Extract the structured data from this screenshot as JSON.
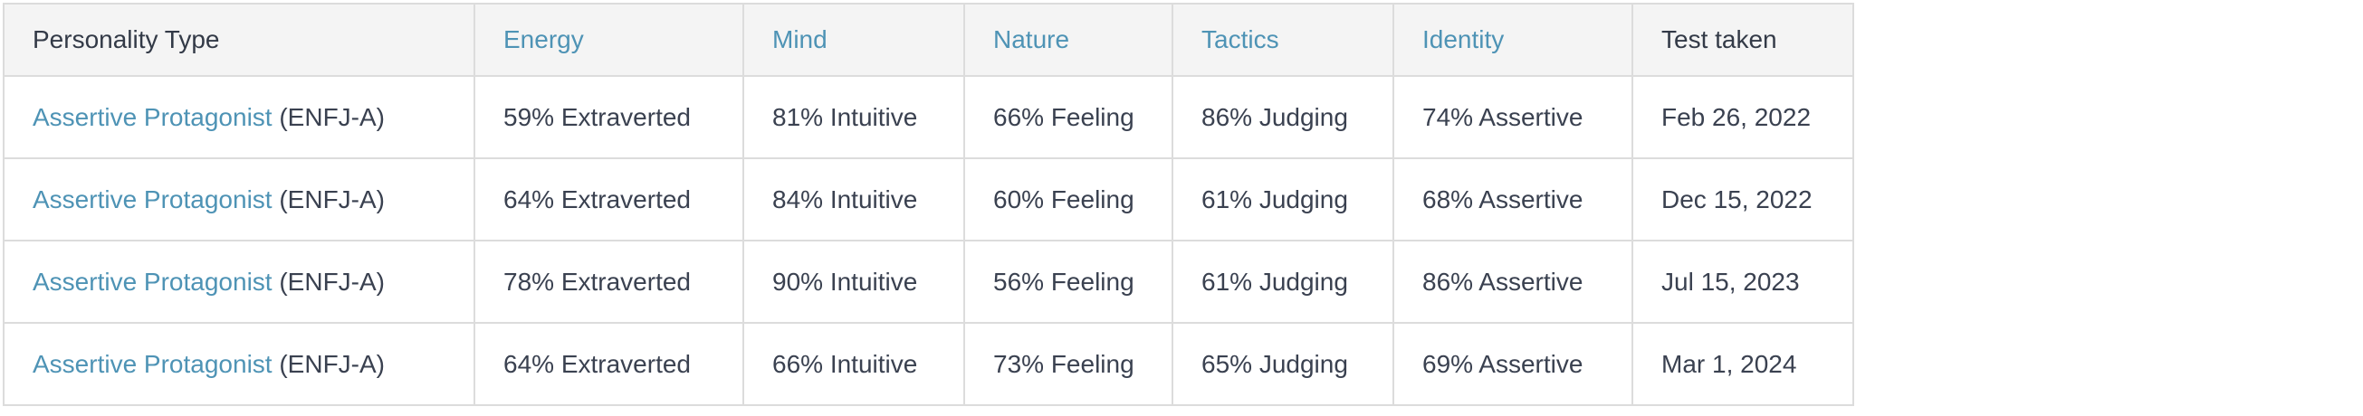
{
  "table": {
    "headers": {
      "type": "Personality Type",
      "energy": "Energy",
      "mind": "Mind",
      "nature": "Nature",
      "tactics": "Tactics",
      "identity": "Identity",
      "date": "Test taken"
    },
    "rows": [
      {
        "type_name": "Assertive Protagonist",
        "type_code": "(ENFJ-A)",
        "energy": "59% Extraverted",
        "mind": "81% Intuitive",
        "nature": "66% Feeling",
        "tactics": "86% Judging",
        "identity": "74% Assertive",
        "date": "Feb 26, 2022"
      },
      {
        "type_name": "Assertive Protagonist",
        "type_code": "(ENFJ-A)",
        "energy": "64% Extraverted",
        "mind": "84% Intuitive",
        "nature": "60% Feeling",
        "tactics": "61% Judging",
        "identity": "68% Assertive",
        "date": "Dec 15, 2022"
      },
      {
        "type_name": "Assertive Protagonist",
        "type_code": "(ENFJ-A)",
        "energy": "78% Extraverted",
        "mind": "90% Intuitive",
        "nature": "56% Feeling",
        "tactics": "61% Judging",
        "identity": "86% Assertive",
        "date": "Jul 15, 2023"
      },
      {
        "type_name": "Assertive Protagonist",
        "type_code": "(ENFJ-A)",
        "energy": "64% Extraverted",
        "mind": "66% Intuitive",
        "nature": "73% Feeling",
        "tactics": "65% Judging",
        "identity": "69% Assertive",
        "date": "Mar 1, 2024"
      }
    ]
  },
  "colors": {
    "link": "#4e93b5",
    "text": "#3a4150",
    "header_bg": "#f4f4f4",
    "border": "#dcdcdc"
  }
}
